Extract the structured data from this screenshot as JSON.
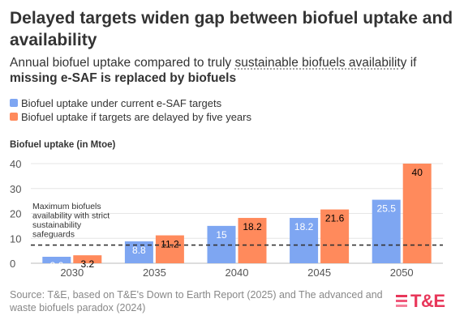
{
  "header": {
    "title": "Delayed targets widen gap between biofuel uptake and availability",
    "subtitle_part1": "Annual biofuel uptake compared to truly ",
    "subtitle_link": "sustainable biofuels availability",
    "subtitle_part2": " if",
    "subtitle_bold": "missing e-SAF is replaced by biofuels"
  },
  "legend": [
    {
      "label": "Biofuel uptake under current e-SAF targets",
      "color": "#7ea6f2"
    },
    {
      "label": "Biofuel uptake if targets are delayed by five years",
      "color": "#ff8a5c"
    }
  ],
  "axis_title": "Biofuel uptake (in Mtoe)",
  "annotation": "Maximum biofuels availability with strict sustainability safeguards",
  "source": "Source: T&E, based on T&E's Down to Earth Report (2025) and The advanced and waste biofuels paradox (2024)",
  "logo_text": "T&E",
  "chart_data": {
    "type": "bar",
    "title": "Delayed targets widen gap between biofuel uptake and availability",
    "ylabel": "Biofuel uptake (in Mtoe)",
    "categories": [
      "2030",
      "2035",
      "2040",
      "2045",
      "2050"
    ],
    "series": [
      {
        "name": "Biofuel uptake under current e-SAF targets",
        "values": [
          2.6,
          8.8,
          15,
          18.2,
          25.5
        ],
        "labels": [
          "2.6",
          "8.8",
          "15",
          "18.2",
          "25.5"
        ],
        "color": "#7ea6f2",
        "label_color": "#ffffff"
      },
      {
        "name": "Biofuel uptake if targets are delayed by five years",
        "values": [
          3.2,
          11.2,
          18.2,
          21.6,
          40
        ],
        "labels": [
          "3.2",
          "11.2",
          "18.2",
          "21.6",
          "40"
        ],
        "color": "#ff8a5c",
        "label_color": "#000000"
      }
    ],
    "yticks": [
      0,
      10,
      20,
      30,
      40
    ],
    "ylim": [
      0,
      40
    ],
    "reference_line": {
      "value": 7.3,
      "style": "dashed",
      "label": "Maximum biofuels availability with strict sustainability safeguards"
    },
    "grid": true
  }
}
